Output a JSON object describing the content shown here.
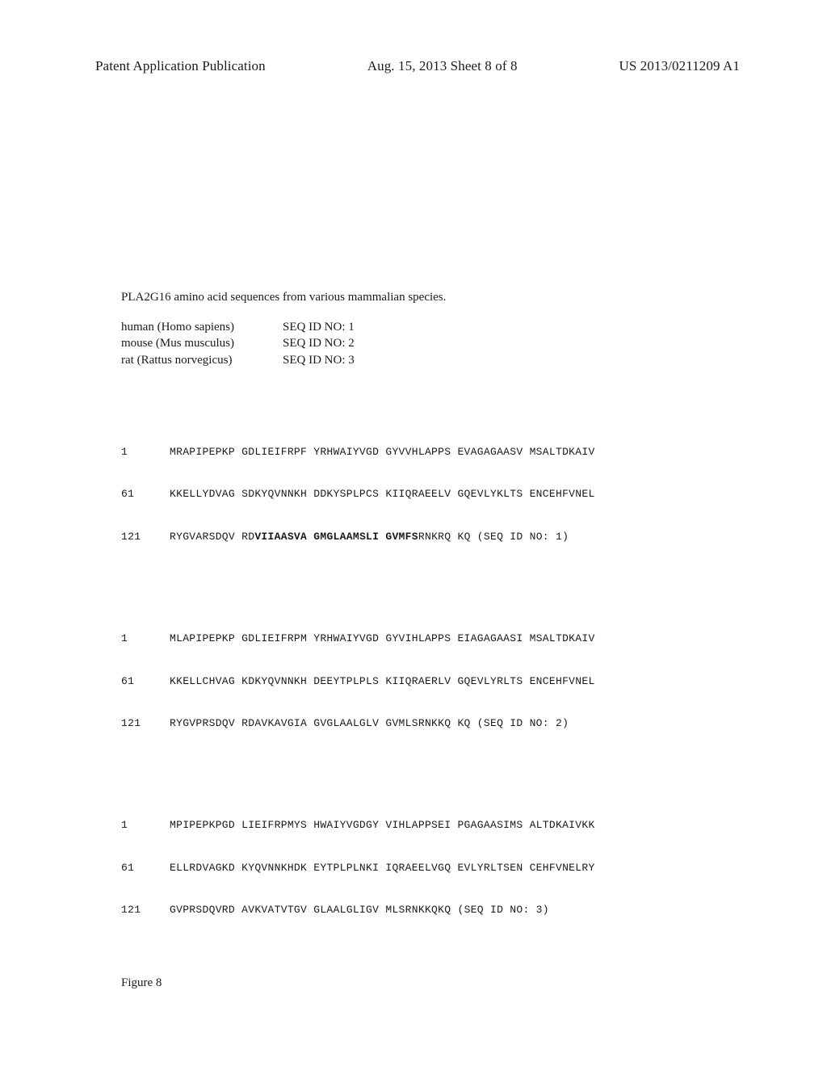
{
  "header": {
    "left": "Patent Application Publication",
    "center": "Aug. 15, 2013  Sheet 8 of 8",
    "right": "US 2013/0211209 A1"
  },
  "caption": "PLA2G16 amino acid sequences from various mammalian species.",
  "species_map": [
    {
      "name": "human (Homo sapiens)",
      "seq": "SEQ ID NO: 1"
    },
    {
      "name": "mouse (Mus musculus)",
      "seq": "SEQ ID NO: 2"
    },
    {
      "name": "rat (Rattus norvegicus)",
      "seq": "SEQ ID NO: 3"
    }
  ],
  "sequences": [
    {
      "lines": [
        {
          "pos": "1",
          "segments": [
            {
              "text": "MRAPIPEPKP GDLIEIFRPF YRHWAIYVGD GYVVHLAPPS EVAGAGAASV MSALTDKAIV",
              "bold": false
            }
          ],
          "note": ""
        },
        {
          "pos": "61",
          "segments": [
            {
              "text": "KKELLYDVAG SDKYQVNNKH DDKYSPLPCS KIIQRAEELV GQEVLYKLTS ENCEHFVNEL",
              "bold": false
            }
          ],
          "note": ""
        },
        {
          "pos": "121",
          "segments": [
            {
              "text": "RYGVARSDQV RD",
              "bold": false
            },
            {
              "text": "VIIAASVA GMGLAAMSLI GVMFS",
              "bold": true
            },
            {
              "text": "RNKRQ KQ ",
              "bold": false
            }
          ],
          "note": "(SEQ ID NO: 1)"
        }
      ]
    },
    {
      "lines": [
        {
          "pos": "1",
          "segments": [
            {
              "text": "MLAPIPEPKP GDLIEIFRPM YRHWAIYVGD GYVIHLAPPS EIAGAGAASI MSALTDKAIV",
              "bold": false
            }
          ],
          "note": ""
        },
        {
          "pos": "61",
          "segments": [
            {
              "text": "KKELLCHVAG KDKYQVNNKH DEEYTPLPLS KIIQRAERLV GQEVLYRLTS ENCEHFVNEL",
              "bold": false
            }
          ],
          "note": ""
        },
        {
          "pos": "121",
          "segments": [
            {
              "text": "RYGVPRSDQV RDAVKAVGIA GVGLAALGLV GVMLSRNKKQ KQ ",
              "bold": false
            }
          ],
          "note": "(SEQ ID NO: 2)"
        }
      ]
    },
    {
      "lines": [
        {
          "pos": "1",
          "segments": [
            {
              "text": "MPIPEPKPGD LIEIFRPMYS HWAIYVGDGY VIHLAPPSEI PGAGAASIMS ALTDKAIVKK",
              "bold": false
            }
          ],
          "note": ""
        },
        {
          "pos": "61",
          "segments": [
            {
              "text": "ELLRDVAGKD KYQVNNKHDK EYTPLPLNKI IQRAEELVGQ EVLYRLTSEN CEHFVNELRY",
              "bold": false
            }
          ],
          "note": ""
        },
        {
          "pos": "121",
          "segments": [
            {
              "text": "GVPRSDQVRD AVKVATVTGV GLAALGLIGV MLSRNKKQKQ ",
              "bold": false
            }
          ],
          "note": "(SEQ ID NO: 3)"
        }
      ]
    }
  ],
  "figure_label": "Figure 8"
}
